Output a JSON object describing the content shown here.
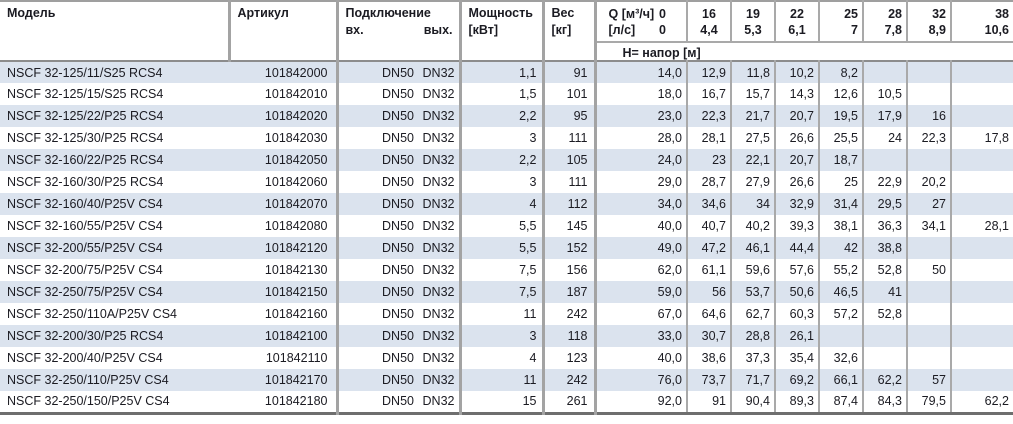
{
  "table": {
    "headers": {
      "model": "Модель",
      "article": "Артикул",
      "connection": "Подключение",
      "connection_in": "вх.",
      "connection_out": "вых.",
      "power_line1": "Мощность",
      "power_line2": "[кВт]",
      "weight_line1": "Вес",
      "weight_line2": "[кг]",
      "q_label": "Q [м³/ч]",
      "q_zero": "0",
      "lps_label": "[л/с]",
      "lps_zero": "0",
      "head_label": "H= напор [м]",
      "q_columns": [
        {
          "m3h": "16",
          "lps": "4,4"
        },
        {
          "m3h": "19",
          "lps": "5,3"
        },
        {
          "m3h": "22",
          "lps": "6,1"
        },
        {
          "m3h": "25",
          "lps": "7"
        },
        {
          "m3h": "28",
          "lps": "7,8"
        },
        {
          "m3h": "32",
          "lps": "8,9"
        },
        {
          "m3h": "38",
          "lps": "10,6"
        }
      ]
    },
    "colors": {
      "row_shade": "#dbe3ee",
      "grid_gray": "#a3a3a3",
      "bottom_border": "#6e6e6e"
    },
    "rows": [
      {
        "model": "NSCF 32-125/11/S25 RCS4",
        "article": "101842000",
        "in": "DN50",
        "out": "DN32",
        "power": "1,1",
        "weight": "91",
        "h": [
          "14,0",
          "12,9",
          "11,8",
          "10,2",
          "8,2",
          "",
          "",
          ""
        ]
      },
      {
        "model": "NSCF 32-125/15/S25 RCS4",
        "article": "101842010",
        "in": "DN50",
        "out": "DN32",
        "power": "1,5",
        "weight": "101",
        "h": [
          "18,0",
          "16,7",
          "15,7",
          "14,3",
          "12,6",
          "10,5",
          "",
          ""
        ]
      },
      {
        "model": "NSCF 32-125/22/P25 RCS4",
        "article": "101842020",
        "in": "DN50",
        "out": "DN32",
        "power": "2,2",
        "weight": "95",
        "h": [
          "23,0",
          "22,3",
          "21,7",
          "20,7",
          "19,5",
          "17,9",
          "16",
          ""
        ]
      },
      {
        "model": "NSCF 32-125/30/P25 RCS4",
        "article": "101842030",
        "in": "DN50",
        "out": "DN32",
        "power": "3",
        "weight": "111",
        "h": [
          "28,0",
          "28,1",
          "27,5",
          "26,6",
          "25,5",
          "24",
          "22,3",
          "17,8"
        ]
      },
      {
        "model": "NSCF 32-160/22/P25 RCS4",
        "article": "101842050",
        "in": "DN50",
        "out": "DN32",
        "power": "2,2",
        "weight": "105",
        "h": [
          "24,0",
          "23",
          "22,1",
          "20,7",
          "18,7",
          "",
          "",
          ""
        ]
      },
      {
        "model": "NSCF 32-160/30/P25 RCS4",
        "article": "101842060",
        "in": "DN50",
        "out": "DN32",
        "power": "3",
        "weight": "111",
        "h": [
          "29,0",
          "28,7",
          "27,9",
          "26,6",
          "25",
          "22,9",
          "20,2",
          ""
        ]
      },
      {
        "model": "NSCF 32-160/40/P25V CS4",
        "article": "101842070",
        "in": "DN50",
        "out": "DN32",
        "power": "4",
        "weight": "112",
        "h": [
          "34,0",
          "34,6",
          "34",
          "32,9",
          "31,4",
          "29,5",
          "27",
          ""
        ]
      },
      {
        "model": "NSCF 32-160/55/P25V CS4",
        "article": "101842080",
        "in": "DN50",
        "out": "DN32",
        "power": "5,5",
        "weight": "145",
        "h": [
          "40,0",
          "40,7",
          "40,2",
          "39,3",
          "38,1",
          "36,3",
          "34,1",
          "28,1"
        ]
      },
      {
        "model": "NSCF 32-200/55/P25V CS4",
        "article": "101842120",
        "in": "DN50",
        "out": "DN32",
        "power": "5,5",
        "weight": "152",
        "h": [
          "49,0",
          "47,2",
          "46,1",
          "44,4",
          "42",
          "38,8",
          "",
          ""
        ]
      },
      {
        "model": "NSCF 32-200/75/P25V CS4",
        "article": "101842130",
        "in": "DN50",
        "out": "DN32",
        "power": "7,5",
        "weight": "156",
        "h": [
          "62,0",
          "61,1",
          "59,6",
          "57,6",
          "55,2",
          "52,8",
          "50",
          ""
        ]
      },
      {
        "model": "NSCF 32-250/75/P25V CS4",
        "article": "101842150",
        "in": "DN50",
        "out": "DN32",
        "power": "7,5",
        "weight": "187",
        "h": [
          "59,0",
          "56",
          "53,7",
          "50,6",
          "46,5",
          "41",
          "",
          ""
        ]
      },
      {
        "model": "NSCF 32-250/110A/P25V CS4",
        "article": "101842160",
        "in": "DN50",
        "out": "DN32",
        "power": "11",
        "weight": "242",
        "h": [
          "67,0",
          "64,6",
          "62,7",
          "60,3",
          "57,2",
          "52,8",
          "",
          ""
        ]
      },
      {
        "model": "NSCF 32-200/30/P25 RCS4",
        "article": "101842100",
        "in": "DN50",
        "out": "DN32",
        "power": "3",
        "weight": "118",
        "h": [
          "33,0",
          "30,7",
          "28,8",
          "26,1",
          "",
          "",
          "",
          ""
        ]
      },
      {
        "model": "NSCF 32-200/40/P25V CS4",
        "article": "101842110",
        "in": "DN50",
        "out": "DN32",
        "power": "4",
        "weight": "123",
        "h": [
          "40,0",
          "38,6",
          "37,3",
          "35,4",
          "32,6",
          "",
          "",
          ""
        ]
      },
      {
        "model": "NSCF 32-250/110/P25V CS4",
        "article": "101842170",
        "in": "DN50",
        "out": "DN32",
        "power": "11",
        "weight": "242",
        "h": [
          "76,0",
          "73,7",
          "71,7",
          "69,2",
          "66,1",
          "62,2",
          "57",
          ""
        ]
      },
      {
        "model": "NSCF 32-250/150/P25V CS4",
        "article": "101842180",
        "in": "DN50",
        "out": "DN32",
        "power": "15",
        "weight": "261",
        "h": [
          "92,0",
          "91",
          "90,4",
          "89,3",
          "87,4",
          "84,3",
          "79,5",
          "62,2"
        ]
      }
    ]
  }
}
